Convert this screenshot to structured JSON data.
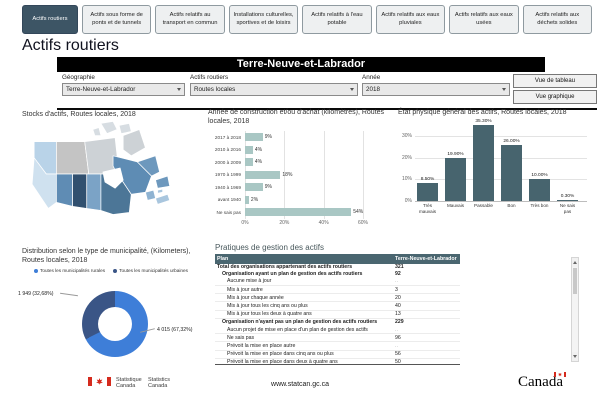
{
  "tabs": [
    {
      "label": "Actifs routiers",
      "active": true
    },
    {
      "label": "Actifs sous forme de ponts et de tunnels",
      "active": false
    },
    {
      "label": "Actifs relatifs au transport en commun",
      "active": false
    },
    {
      "label": "Installations culturelles, sportives et de loisirs",
      "active": false
    },
    {
      "label": "Actifs relatifs à l'eau potable",
      "active": false
    },
    {
      "label": "Actifs relatifs aux eaux pluviales",
      "active": false
    },
    {
      "label": "Actifs relatifs aux eaux usées",
      "active": false
    },
    {
      "label": "Actifs relatifs aux déchets solides",
      "active": false
    }
  ],
  "page_title": "Actifs routiers",
  "region_banner": "Terre-Neuve-et-Labrador",
  "filters": {
    "geography_label": "Géographie",
    "geography_value": "Terre-Neuve-et-Labrador",
    "asset_label": "Actifs routiers",
    "asset_value": "Routes locales",
    "year_label": "Année",
    "year_value": "2018",
    "table_view": "Vue de tableau",
    "graph_view": "Vue graphique"
  },
  "map_panel": {
    "title": "Stocks d'actifs, Routes locales, 2018",
    "provinces": [
      {
        "id": "yt",
        "color": "#b9d3e8"
      },
      {
        "id": "nt",
        "color": "#c4c4c4"
      },
      {
        "id": "nu",
        "color": "#cdd2d6"
      },
      {
        "id": "arctic",
        "color": "#d7dde2"
      },
      {
        "id": "bc",
        "color": "#cfe1ef"
      },
      {
        "id": "ab",
        "color": "#5f8cb4"
      },
      {
        "id": "sk",
        "color": "#31506f"
      },
      {
        "id": "mb",
        "color": "#7ba3c6"
      },
      {
        "id": "on",
        "color": "#4c7697"
      },
      {
        "id": "qc",
        "color": "#5e8cb4"
      },
      {
        "id": "nl",
        "color": "#6d98bd"
      },
      {
        "id": "nb",
        "color": "#8fb3d2"
      },
      {
        "id": "ns",
        "color": "#a9c6de"
      },
      {
        "id": "pe",
        "color": "#a9c6de"
      }
    ]
  },
  "chart_data": [
    {
      "type": "bar",
      "orientation": "horizontal",
      "title": "Année de construction et/ou d'achat (kilomètres), Routes locales, 2018",
      "categories": [
        "2017 à 2018",
        "2010 à 2016",
        "2000 à 2009",
        "1970 à 1999",
        "1940 à 1969",
        "avant 1940",
        "Ne sais pas"
      ],
      "values": [
        9,
        4,
        4,
        18,
        9,
        2,
        54
      ],
      "value_labels": [
        "9%",
        "4%",
        "4%",
        "18%",
        "9%",
        "2%",
        "54%"
      ],
      "xlim": [
        0,
        60
      ],
      "xticks": [
        0,
        20,
        40,
        60
      ],
      "xtick_labels": [
        "0%",
        "20%",
        "40%",
        "60%"
      ],
      "bar_color": "#a9c7c4",
      "grid": true
    },
    {
      "type": "bar",
      "orientation": "vertical",
      "title": "État physique général des actifs, Routes locales, 2018",
      "categories": [
        "Très mauvais",
        "Mauvais",
        "Passable",
        "Bon",
        "Très bon",
        "Ne sais pas"
      ],
      "values": [
        8.5,
        19.9,
        35.3,
        26.0,
        10.0,
        0.3
      ],
      "value_labels": [
        "8.50%",
        "19.90%",
        "35.30%",
        "26.00%",
        "10.00%",
        "0.30%"
      ],
      "ylim": [
        0,
        36
      ],
      "yticks": [
        0,
        10,
        20,
        30
      ],
      "ytick_labels": [
        "0%",
        "10%",
        "20%",
        "30%"
      ],
      "bar_color": "#47646e",
      "grid": true
    },
    {
      "type": "pie",
      "title": "Distribution selon le type de municipalité, (Kilometers), Routes locales, 2018",
      "legend_position": "top",
      "slices": [
        {
          "name": "Toutes les municipalités rurales",
          "value": 4015,
          "pct": 67.32,
          "label": "4 015 (67,32%)",
          "color": "#3e7ed8"
        },
        {
          "name": "Toutes les municipalités urbaines",
          "value": 1949,
          "pct": 32.68,
          "label": "1 949 (32,68%)",
          "color": "#3a5586"
        }
      ]
    }
  ],
  "table": {
    "title": "Pratiques de gestion des actifs",
    "columns": [
      "Plan",
      "Terre-Neuve-et-Labrador"
    ],
    "rows": [
      {
        "label": "Total des organisations appartenant des actifs routiers",
        "value": "321",
        "bold": true,
        "indent": 0
      },
      {
        "label": "Organisation ayant un plan de gestion des actifs routiers",
        "value": "92",
        "bold": true,
        "indent": 1
      },
      {
        "label": "Aucune mise à jour",
        "value": "..",
        "bold": false,
        "indent": 2
      },
      {
        "label": "Mis à jour autre",
        "value": "3",
        "bold": false,
        "indent": 2
      },
      {
        "label": "Mis à jour chaque année",
        "value": "20",
        "bold": false,
        "indent": 2
      },
      {
        "label": "Mis à jour tous les cinq ans ou plus",
        "value": "40",
        "bold": false,
        "indent": 2
      },
      {
        "label": "Mis à jour tous les deux à quatre ans",
        "value": "13",
        "bold": false,
        "indent": 2
      },
      {
        "label": "Organisation n'ayant pas un plan de gestion des actifs routiers",
        "value": "229",
        "bold": true,
        "indent": 1
      },
      {
        "label": "Aucun projet de mise en place d'un plan de gestion des actifs",
        "value": "..",
        "bold": false,
        "indent": 2
      },
      {
        "label": "Ne sais pas",
        "value": "96",
        "bold": false,
        "indent": 2
      },
      {
        "label": "Prévoit la mise en place autre",
        "value": "..",
        "bold": false,
        "indent": 2
      },
      {
        "label": "Prévoit la mise en place dans cinq ans ou plus",
        "value": "56",
        "bold": false,
        "indent": 2
      },
      {
        "label": "Prévoit la mise en place dans deux à quatre ans",
        "value": "50",
        "bold": false,
        "indent": 2
      },
      {
        "label": "Prévoit la mise en place dans un an",
        "value": "27",
        "bold": false,
        "indent": 2
      }
    ]
  },
  "footer": {
    "agency_fr": "Statistique Canada",
    "agency_en": "Statistics Canada",
    "url": "www.statcan.gc.ca",
    "wordmark": "Canada"
  },
  "colors": {
    "active_tab": "#3d5565",
    "teal_bar": "#a9c7c4",
    "slate_bar": "#47646e",
    "donut_rural": "#3e7ed8",
    "donut_urban": "#3a5586",
    "table_header_bg": "#4a6670"
  }
}
